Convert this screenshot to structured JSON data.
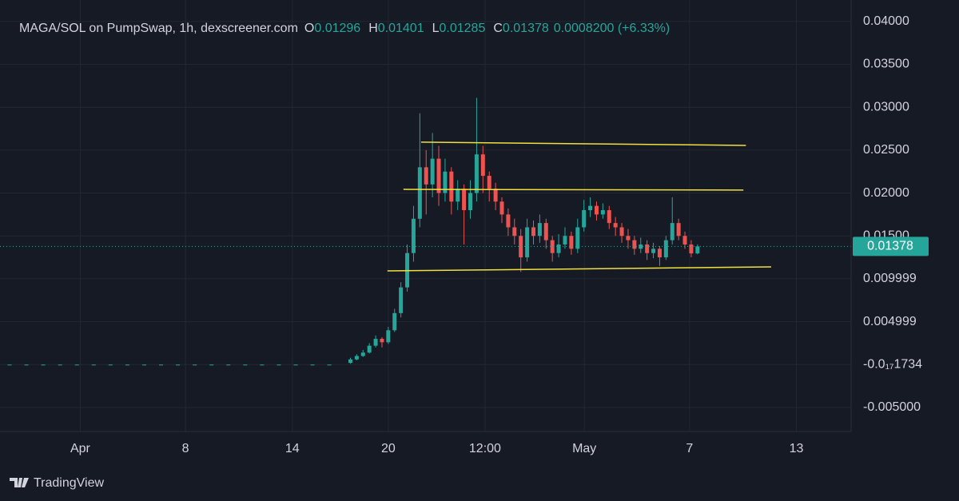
{
  "chart_data": {
    "type": "candlestick",
    "title": "MAGA/SOL on PumpSwap, 1h, dexscreener.com",
    "ohlc_header": [
      {
        "label": "O",
        "value": 0.01296
      },
      {
        "label": "H",
        "value": 0.01401
      },
      {
        "label": "L",
        "value": 0.01285
      },
      {
        "label": "C",
        "value": 0.01378
      }
    ],
    "change": "0.0008200 (+6.33%)",
    "last_price": 0.01378,
    "up_color": "#26a69a",
    "down_color": "#ef5350",
    "xlim": [
      0,
      100
    ],
    "xticks": [
      {
        "value": 8.4,
        "label": "Apr"
      },
      {
        "value": 20.9,
        "label": "8"
      },
      {
        "value": 33.6,
        "label": "14"
      },
      {
        "value": 45,
        "label": "20"
      },
      {
        "value": 56.5,
        "label": "12:00"
      },
      {
        "value": 68.3,
        "label": "May"
      },
      {
        "value": 80.8,
        "label": "7"
      },
      {
        "value": 93.5,
        "label": "13"
      }
    ],
    "ylim": [
      -0.0078,
      0.0425
    ],
    "yticks": [
      {
        "value": -0.005,
        "label": "-0.005000"
      },
      {
        "value": 0,
        "label": "-0.0₁₇1734"
      },
      {
        "value": 0.005,
        "label": "0.004999"
      },
      {
        "value": 0.01,
        "label": "0.009999"
      },
      {
        "value": 0.015,
        "label": "0.01500"
      },
      {
        "value": 0.02,
        "label": "0.02000"
      },
      {
        "value": 0.025,
        "label": "0.02500"
      },
      {
        "value": 0.03,
        "label": "0.03000"
      },
      {
        "value": 0.035,
        "label": "0.03500"
      },
      {
        "value": 0.04,
        "label": "0.04000"
      }
    ],
    "grid": true,
    "x": [
      0,
      2,
      4,
      6,
      8,
      10,
      12,
      14,
      16,
      18,
      20,
      22,
      24,
      26,
      28,
      30,
      32,
      34,
      36,
      38,
      40.5,
      41.25,
      42,
      42.75,
      43.5,
      44.25,
      45,
      45.75,
      46.5,
      47.25,
      48,
      48.75,
      49.5,
      50.25,
      51,
      51.75,
      52.5,
      53.25,
      54,
      54.75,
      55.5,
      56.25,
      57,
      57.75,
      58.5,
      59.25,
      60,
      60.75,
      61.5,
      62.25,
      63,
      63.75,
      64.5,
      65.25,
      66,
      66.75,
      67.5,
      68.25,
      69,
      69.75,
      70.5,
      71.25,
      72,
      72.75,
      73.5,
      74.25,
      75,
      75.75,
      76.5,
      77.25,
      78,
      78.75,
      79.5,
      80.25,
      81,
      81.75
    ],
    "open": [
      0,
      0,
      0,
      0,
      0,
      0,
      0,
      0,
      0,
      0,
      0,
      0,
      0,
      0,
      0,
      0,
      0,
      0,
      0,
      0,
      0.0002,
      0.0006,
      0.001,
      0.0014,
      0.0022,
      0.003,
      0.0026,
      0.004,
      0.006,
      0.009,
      0.013,
      0.017,
      0.023,
      0.021,
      0.024,
      0.02,
      0.0225,
      0.019,
      0.0205,
      0.018,
      0.02,
      0.0245,
      0.022,
      0.0205,
      0.019,
      0.0175,
      0.016,
      0.015,
      0.0125,
      0.016,
      0.015,
      0.0165,
      0.0145,
      0.013,
      0.014,
      0.015,
      0.0135,
      0.016,
      0.018,
      0.0185,
      0.0175,
      0.018,
      0.0165,
      0.016,
      0.015,
      0.0145,
      0.0135,
      0.014,
      0.013,
      0.0135,
      0.0125,
      0.0145,
      0.0165,
      0.015,
      0.014,
      0.01296
    ],
    "high": [
      0,
      0,
      0,
      0,
      0,
      0,
      0,
      0,
      0,
      0,
      0,
      0,
      0,
      0,
      0,
      0,
      0,
      0,
      0,
      0,
      0.0008,
      0.0012,
      0.0017,
      0.0025,
      0.0034,
      0.0032,
      0.0044,
      0.0065,
      0.0096,
      0.014,
      0.0185,
      0.0293,
      0.025,
      0.027,
      0.0255,
      0.024,
      0.023,
      0.0215,
      0.021,
      0.0215,
      0.0311,
      0.0255,
      0.0225,
      0.0212,
      0.0195,
      0.0182,
      0.017,
      0.0158,
      0.017,
      0.0168,
      0.0175,
      0.017,
      0.015,
      0.0152,
      0.016,
      0.0155,
      0.017,
      0.0192,
      0.0195,
      0.019,
      0.0188,
      0.0185,
      0.0172,
      0.0165,
      0.0158,
      0.015,
      0.0148,
      0.0145,
      0.0142,
      0.0138,
      0.015,
      0.0195,
      0.017,
      0.0155,
      0.0145,
      0.01401
    ],
    "low": [
      0,
      0,
      0,
      0,
      0,
      0,
      0,
      0,
      0,
      0,
      0,
      0,
      0,
      0,
      0,
      0,
      0,
      0,
      0,
      0,
      0.0001,
      0.0005,
      0.0009,
      0.0013,
      0.002,
      0.002,
      0.0024,
      0.0038,
      0.0055,
      0.0085,
      0.012,
      0.016,
      0.0175,
      0.0195,
      0.0185,
      0.019,
      0.0175,
      0.018,
      0.014,
      0.017,
      0.019,
      0.02,
      0.019,
      0.018,
      0.0165,
      0.015,
      0.014,
      0.0108,
      0.012,
      0.014,
      0.0142,
      0.0135,
      0.012,
      0.0125,
      0.0135,
      0.0128,
      0.013,
      0.0155,
      0.0172,
      0.0168,
      0.017,
      0.0158,
      0.015,
      0.0142,
      0.0135,
      0.0128,
      0.013,
      0.0122,
      0.0124,
      0.0115,
      0.0122,
      0.014,
      0.0145,
      0.0135,
      0.0125,
      0.01285
    ],
    "close": [
      0,
      0,
      0,
      0,
      0,
      0,
      0,
      0,
      0,
      0,
      0,
      0,
      0,
      0,
      0,
      0,
      0,
      0,
      0,
      0,
      0.0006,
      0.001,
      0.0014,
      0.0022,
      0.003,
      0.0026,
      0.004,
      0.006,
      0.009,
      0.013,
      0.017,
      0.023,
      0.021,
      0.024,
      0.02,
      0.0225,
      0.019,
      0.0205,
      0.018,
      0.02,
      0.0245,
      0.022,
      0.0205,
      0.019,
      0.0175,
      0.016,
      0.015,
      0.0125,
      0.016,
      0.015,
      0.0165,
      0.0145,
      0.013,
      0.014,
      0.015,
      0.0135,
      0.016,
      0.018,
      0.0185,
      0.0175,
      0.018,
      0.0165,
      0.016,
      0.015,
      0.0145,
      0.0135,
      0.014,
      0.013,
      0.0135,
      0.0125,
      0.0145,
      0.0165,
      0.015,
      0.014,
      0.01296,
      0.01378
    ],
    "trend_lines": [
      {
        "color": "#f0e040",
        "x": [
          48.9,
          87.5
        ],
        "y": [
          0.02593,
          0.02555
        ]
      },
      {
        "color": "#f0e040",
        "x": [
          46.8,
          87.2
        ],
        "y": [
          0.02043,
          0.02034
        ]
      },
      {
        "color": "#f0e040",
        "x": [
          44.9,
          90.5
        ],
        "y": [
          0.01092,
          0.01139
        ]
      }
    ],
    "footer_brand": "TradingView"
  }
}
